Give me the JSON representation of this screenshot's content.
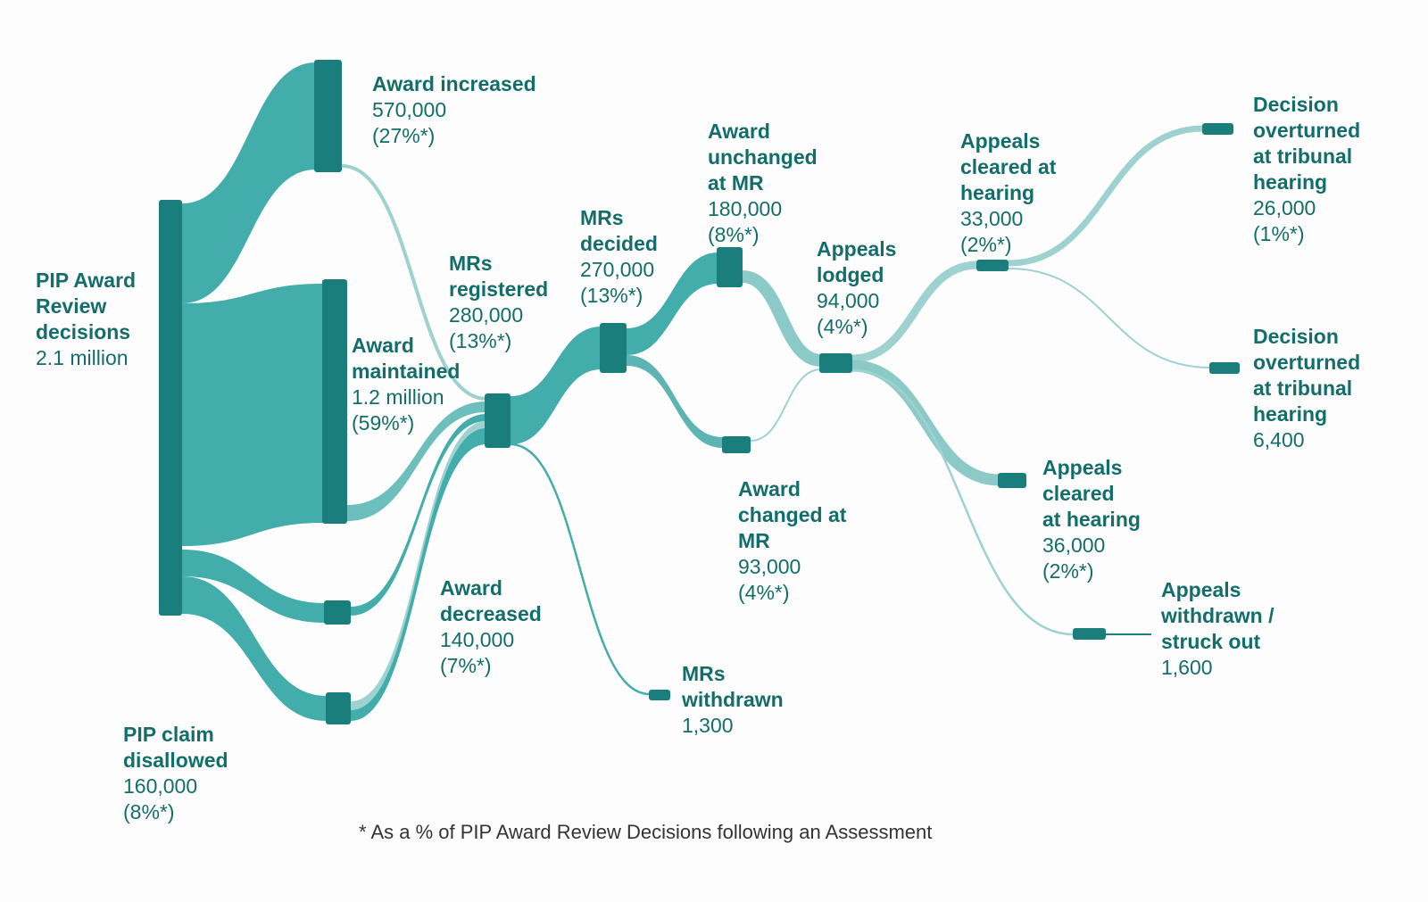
{
  "colors": {
    "node": "#1a7f7c",
    "flow": "#42adab",
    "flow_light": "#9dd2d0",
    "text": "#136e6b"
  },
  "nodes": {
    "root": {
      "label": "PIP Award\nReview\ndecisions",
      "value": "2.1 million"
    },
    "increased": {
      "label": "Award increased",
      "value": "570,000",
      "pct": "(27%*)"
    },
    "maintained": {
      "label": "Award\nmaintained",
      "value": "1.2 million",
      "pct": "(59%*)"
    },
    "disallowed": {
      "label": "PIP claim\ndisallowed",
      "value": "160,000",
      "pct": "(8%*)"
    },
    "decreased": {
      "label": "Award\ndecreased",
      "value": "140,000",
      "pct": "(7%*)"
    },
    "mr_registered": {
      "label": "MRs\nregistered",
      "value": "280,000",
      "pct": "(13%*)"
    },
    "mr_decided": {
      "label": "MRs\ndecided",
      "value": "270,000",
      "pct": "(13%*)"
    },
    "mr_withdrawn": {
      "label": "MRs\nwithdrawn",
      "value": "1,300"
    },
    "unchanged": {
      "label": "Award\nunchanged\nat MR",
      "value": "180,000",
      "pct": "(8%*)"
    },
    "changed": {
      "label": "Award\nchanged at\nMR",
      "value": "93,000",
      "pct": "(4%*)"
    },
    "appeals_lodged": {
      "label": "Appeals\nlodged",
      "value": "94,000",
      "pct": "(4%*)"
    },
    "cleared_1": {
      "label": "Appeals\ncleared at\nhearing",
      "value": "33,000",
      "pct": "(2%*)"
    },
    "cleared_2": {
      "label": "Appeals\ncleared\nat hearing",
      "value": "36,000",
      "pct": "(2%*)"
    },
    "withdrawn_struck": {
      "label": "Appeals\nwithdrawn /\nstruck out",
      "value": "1,600"
    },
    "overturned_1": {
      "label": "Decision\noverturned\nat tribunal\nhearing",
      "value": "26,000",
      "pct": "(1%*)"
    },
    "overturned_2": {
      "label": "Decision\noverturned\nat tribunal\nhearing",
      "value": "6,400"
    }
  },
  "footnote": "* As a % of PIP Award Review Decisions following an Assessment"
}
